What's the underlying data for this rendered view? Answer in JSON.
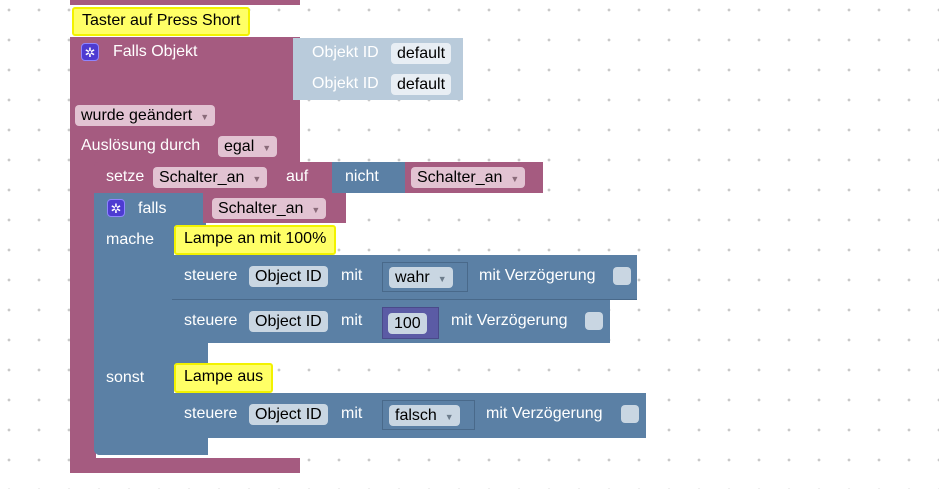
{
  "trigger": {
    "comment": "Taster auf Press Short",
    "label": "Falls Objekt",
    "object_label": "Objekt ID",
    "object_values": [
      "default",
      "default"
    ],
    "change_option": "wurde geändert",
    "trigger_label": "Auslösung durch",
    "trigger_option": "egal"
  },
  "set_block": {
    "label": "setze",
    "variable": "Schalter_an",
    "to_label": "auf",
    "not_label": "nicht",
    "value_variable": "Schalter_an"
  },
  "if_block": {
    "label": "falls",
    "condition_variable": "Schalter_an",
    "do_label": "mache",
    "else_label": "sonst"
  },
  "do_branch": {
    "comment": "Lampe an mit 100%",
    "controls": [
      {
        "label": "steuere",
        "object": "Object ID",
        "with_label": "mit",
        "value": "wahr",
        "delay_label": "mit Verzögerung",
        "delay_checked": false
      },
      {
        "label": "steuere",
        "object": "Object ID",
        "with_label": "mit",
        "value": "100",
        "delay_label": "mit Verzögerung",
        "delay_checked": false
      }
    ]
  },
  "else_branch": {
    "comment": "Lampe aus",
    "controls": [
      {
        "label": "steuere",
        "object": "Object ID",
        "with_label": "mit",
        "value": "falsch",
        "delay_label": "mit Verzögerung",
        "delay_checked": false
      }
    ]
  },
  "colors": {
    "event_block": "#a55b80",
    "logic_block": "#5b80a5",
    "object_block": "#b9cbdb",
    "number_block": "#5b5ba5",
    "comment": "#ffff66"
  }
}
